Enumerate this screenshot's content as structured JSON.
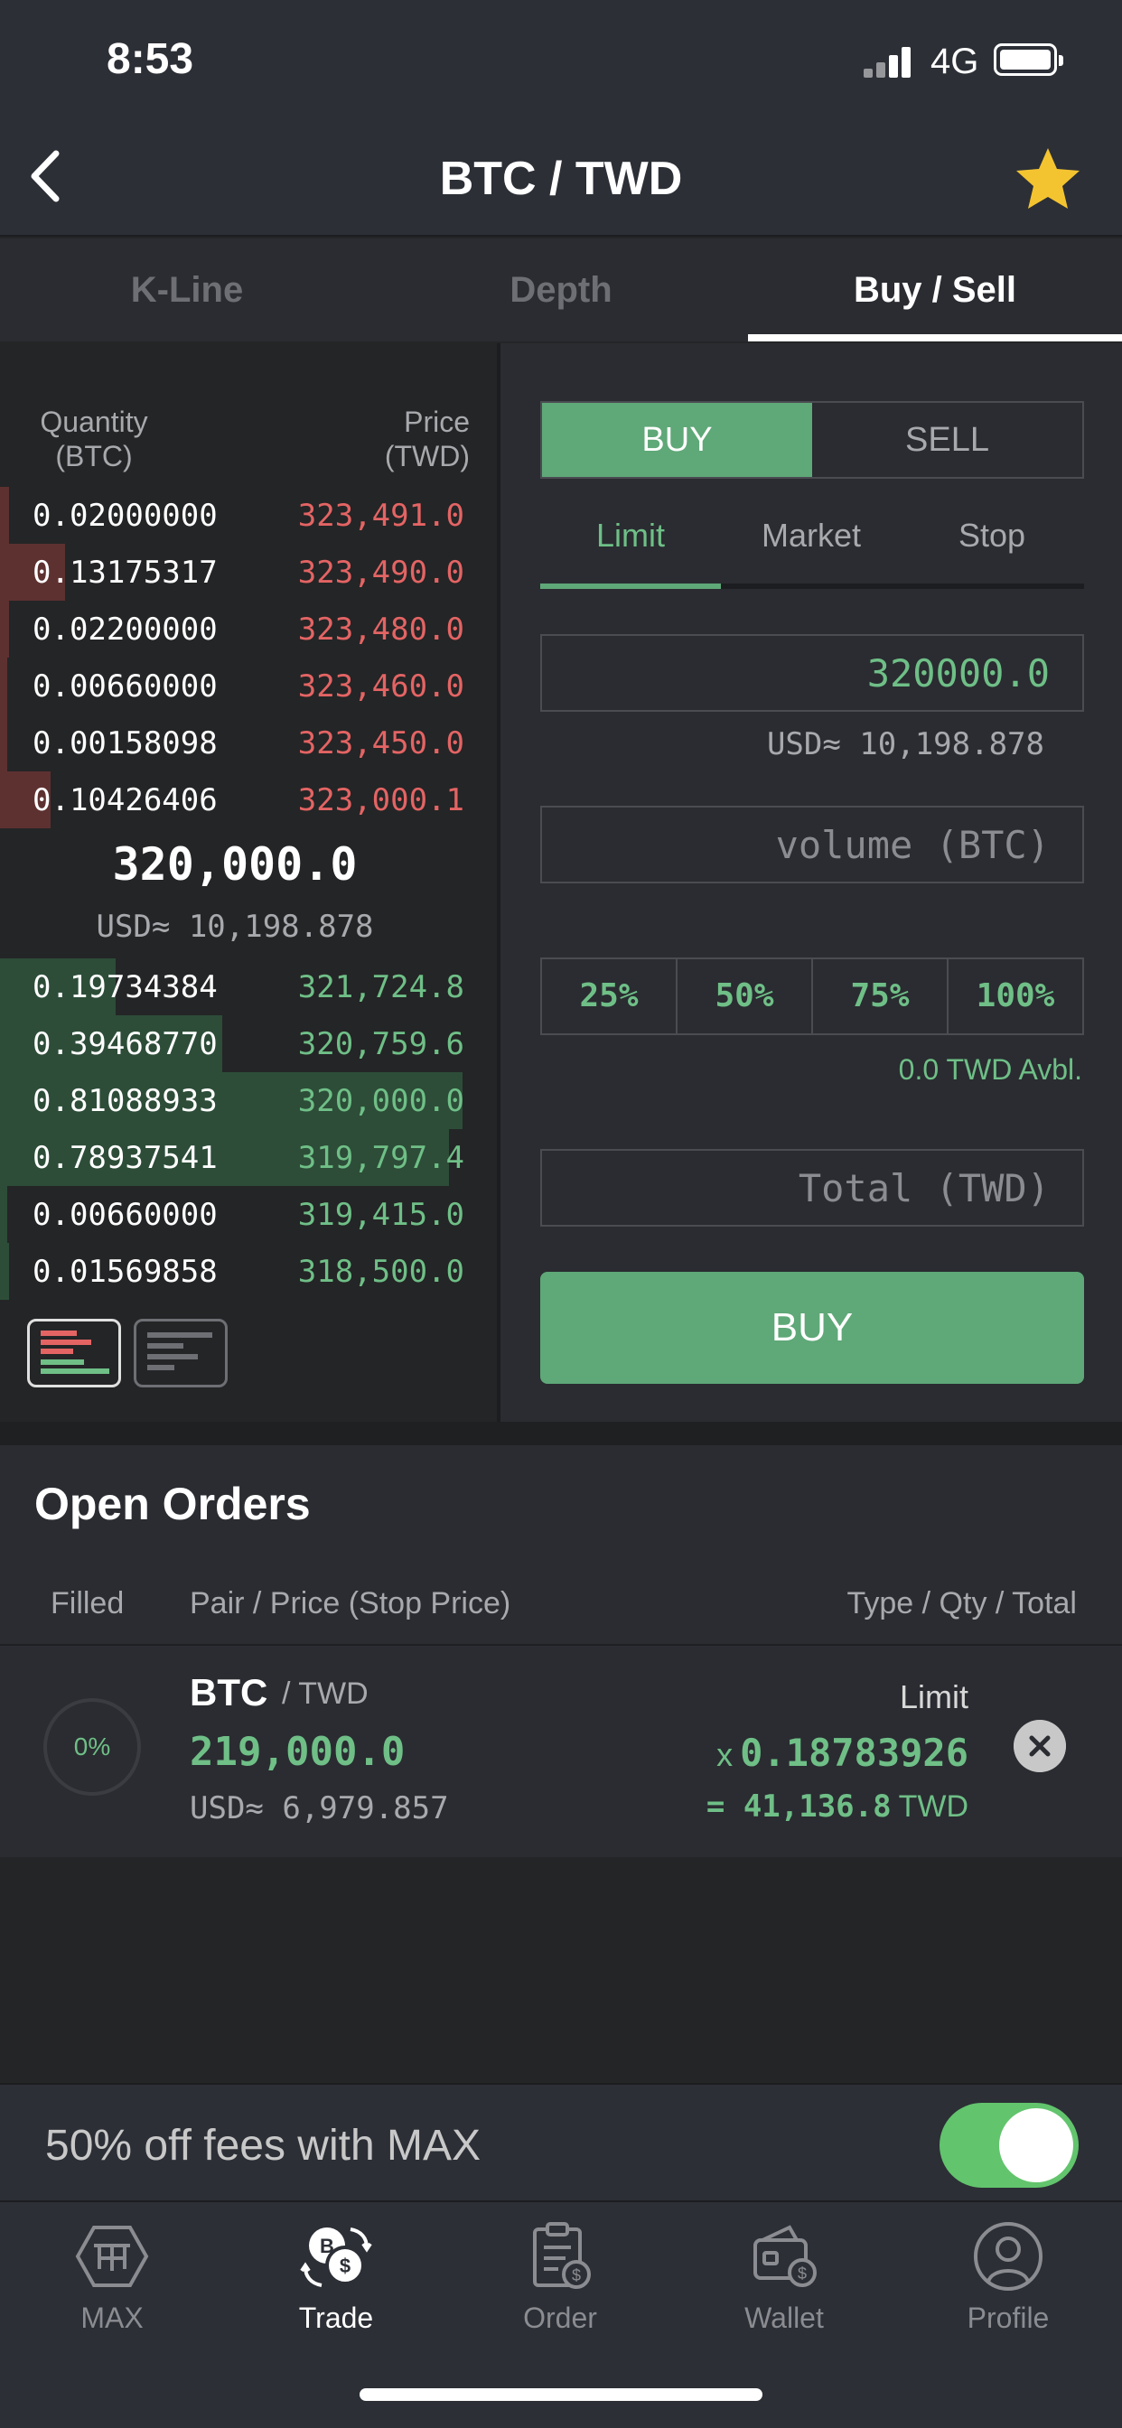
{
  "status_bar": {
    "time": "8:53",
    "network": "4G"
  },
  "nav": {
    "title": "BTC / TWD"
  },
  "tabs": [
    {
      "label": "K-Line"
    },
    {
      "label": "Depth"
    },
    {
      "label": "Buy / Sell",
      "active": true
    }
  ],
  "order_book": {
    "qty_header_1": "Quantity",
    "qty_header_2": "(BTC)",
    "price_header_1": "Price",
    "price_header_2": "(TWD)",
    "asks": [
      {
        "qty": "0.02000000",
        "price": "323,491.0",
        "depth": 0.02
      },
      {
        "qty": "0.13175317",
        "price": "323,490.0",
        "depth": 0.14
      },
      {
        "qty": "0.02200000",
        "price": "323,480.0",
        "depth": 0.02
      },
      {
        "qty": "0.00660000",
        "price": "323,460.0",
        "depth": 0.01
      },
      {
        "qty": "0.00158098",
        "price": "323,450.0",
        "depth": 0.005
      },
      {
        "qty": "0.10426406",
        "price": "323,000.1",
        "depth": 0.11
      }
    ],
    "last_price": "320,000.0",
    "last_price_usd": "USD≈ 10,198.878",
    "bids": [
      {
        "qty": "0.19734384",
        "price": "321,724.8",
        "depth": 0.25
      },
      {
        "qty": "0.39468770",
        "price": "320,759.6",
        "depth": 0.48
      },
      {
        "qty": "0.81088933",
        "price": "320,000.0",
        "depth": 1.0
      },
      {
        "qty": "0.78937541",
        "price": "319,797.4",
        "depth": 0.97
      },
      {
        "qty": "0.00660000",
        "price": "319,415.0",
        "depth": 0.01
      },
      {
        "qty": "0.01569858",
        "price": "318,500.0",
        "depth": 0.02
      }
    ]
  },
  "trade_form": {
    "buy_label": "BUY",
    "sell_label": "SELL",
    "order_types": [
      "Limit",
      "Market",
      "Stop"
    ],
    "price_value": "320000.0",
    "price_usd": "USD≈ 10,198.878",
    "volume_placeholder": "volume (BTC)",
    "percent_options": [
      "25%",
      "50%",
      "75%",
      "100%"
    ],
    "available": "0.0 TWD Avbl.",
    "total_placeholder": "Total (TWD)",
    "submit_label": "BUY"
  },
  "open_orders": {
    "title": "Open Orders",
    "headers": {
      "filled": "Filled",
      "pair": "Pair / Price (Stop Price)",
      "type": "Type / Qty / Total"
    },
    "rows": [
      {
        "filled": "0%",
        "base": "BTC",
        "quote": "/ TWD",
        "price": "219,000.0",
        "price_usd": "USD≈ 6,979.857",
        "type": "Limit",
        "qty_prefix": "x",
        "qty": "0.18783926",
        "total": "= 41,136.8",
        "total_unit": "TWD"
      }
    ]
  },
  "promo": {
    "text": "50% off fees with MAX",
    "toggle_on": true
  },
  "bottom_nav": [
    {
      "label": "MAX",
      "icon": "max-logo-icon"
    },
    {
      "label": "Trade",
      "icon": "trade-icon",
      "active": true
    },
    {
      "label": "Order",
      "icon": "order-icon"
    },
    {
      "label": "Wallet",
      "icon": "wallet-icon"
    },
    {
      "label": "Profile",
      "icon": "profile-icon"
    }
  ],
  "colors": {
    "green": "#5fa878",
    "red": "#e46464",
    "star": "#f4c430"
  }
}
